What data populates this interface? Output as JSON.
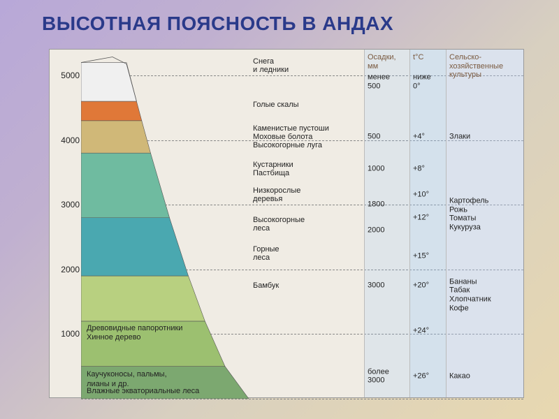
{
  "title": "ВЫСОТНАЯ ПОЯСНОСТЬ В АНДАХ",
  "axis": {
    "ylim": [
      0,
      5400
    ],
    "ticks": [
      0,
      1000,
      2000,
      3000,
      4000,
      5000
    ],
    "grid_color": "#888888"
  },
  "mountain_zones": [
    {
      "from": 0,
      "to": 500,
      "color": "#7ca870"
    },
    {
      "from": 500,
      "to": 1200,
      "color": "#9cc070"
    },
    {
      "from": 1200,
      "to": 1900,
      "color": "#b8d080"
    },
    {
      "from": 1900,
      "to": 2800,
      "color": "#4aa8b0"
    },
    {
      "from": 2800,
      "to": 3800,
      "color": "#6fbba0"
    },
    {
      "from": 3800,
      "to": 4300,
      "color": "#d0b878"
    },
    {
      "from": 4300,
      "to": 4600,
      "color": "#e07838"
    },
    {
      "from": 4600,
      "to": 5200,
      "color": "#f0f0f0"
    }
  ],
  "inside_labels": [
    {
      "y": 1050,
      "text": "Древовидные папоротники\nХинное дерево"
    },
    {
      "y": 330,
      "text": "Каучуконосы, пальмы,\nлианы и др."
    },
    {
      "y": 80,
      "text": "Влажные экваториальные леса"
    }
  ],
  "zone_labels": [
    {
      "y": 5150,
      "text": "Снега\nи ледники"
    },
    {
      "y": 4550,
      "text": "Голые скалы"
    },
    {
      "y": 4050,
      "text": "Каменистые пустоши\nМоховые болота\nВысокогорные луга"
    },
    {
      "y": 3550,
      "text": "Кустарники\nПастбища"
    },
    {
      "y": 3150,
      "text": "Низкорослые\nдеревья"
    },
    {
      "y": 2700,
      "text": "Высокогорные\nлеса"
    },
    {
      "y": 2250,
      "text": "Горные\nлеса"
    },
    {
      "y": 1750,
      "text": "Бамбук"
    }
  ],
  "columns": {
    "precip": {
      "header": "Осадки,\nмм",
      "values": [
        {
          "y": 4900,
          "text": "менее\n500"
        },
        {
          "y": 4050,
          "text": "500"
        },
        {
          "y": 3550,
          "text": "1000"
        },
        {
          "y": 3000,
          "text": "1800"
        },
        {
          "y": 2600,
          "text": "2000"
        },
        {
          "y": 1750,
          "text": "3000"
        },
        {
          "y": 350,
          "text": "более\n3000"
        }
      ]
    },
    "temp": {
      "header": "t°C",
      "values": [
        {
          "y": 4900,
          "text": "ниже\n0°"
        },
        {
          "y": 4050,
          "text": "+4°"
        },
        {
          "y": 3550,
          "text": "+8°"
        },
        {
          "y": 3150,
          "text": "+10°"
        },
        {
          "y": 2800,
          "text": "+12°"
        },
        {
          "y": 2200,
          "text": "+15°"
        },
        {
          "y": 1750,
          "text": "+20°"
        },
        {
          "y": 1050,
          "text": "+24°"
        },
        {
          "y": 350,
          "text": "+26°"
        }
      ]
    },
    "crops": {
      "header": "Сельско-\nхозяйственные\nкультуры",
      "values": [
        {
          "y": 4050,
          "text": "Злаки"
        },
        {
          "y": 2850,
          "text": "Картофель\nРожь\nТоматы\nКукуруза"
        },
        {
          "y": 1600,
          "text": "Бананы\nТабак\nХлопчатник\nКофе"
        },
        {
          "y": 350,
          "text": "Какао"
        }
      ]
    }
  },
  "background_color": "#f0ece4",
  "fontsize_title": 28,
  "fontsize_body": 11
}
